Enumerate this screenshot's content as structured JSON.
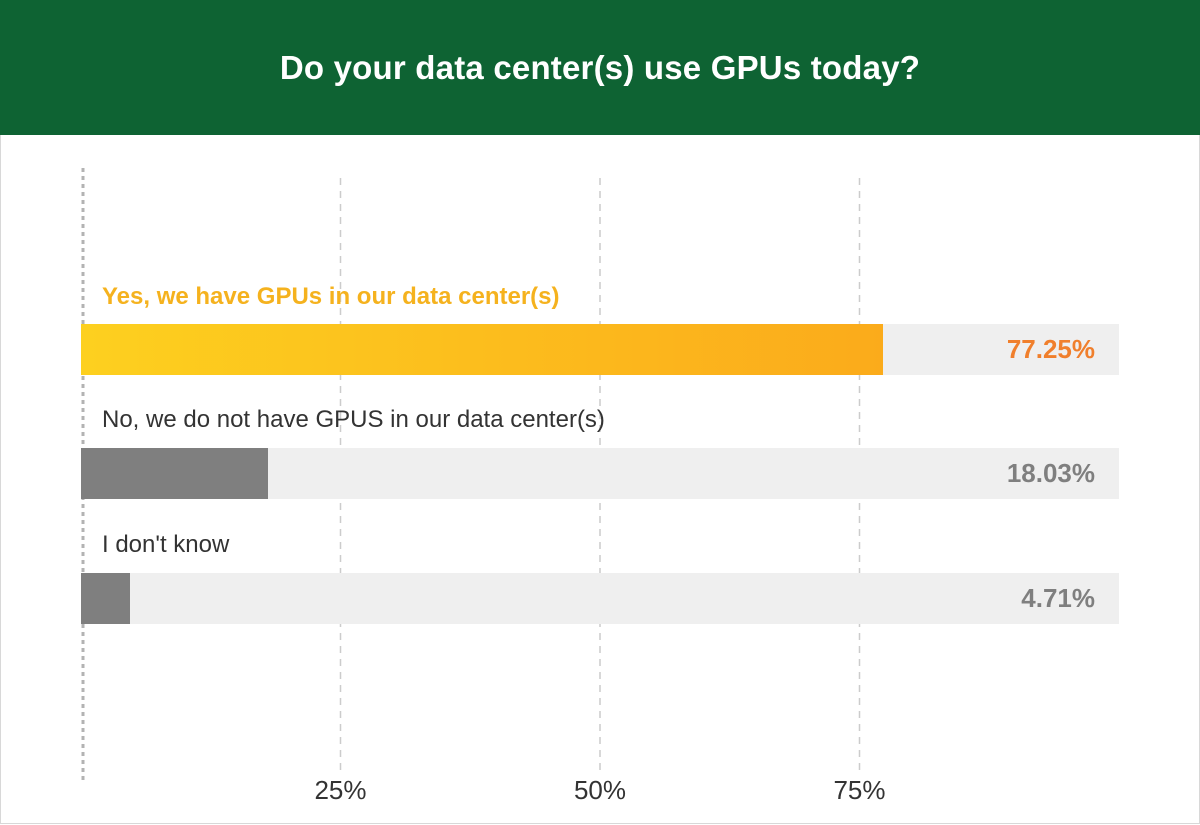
{
  "chart_data": {
    "type": "bar",
    "orientation": "horizontal",
    "title": "Do your data center(s) use GPUs today?",
    "categories": [
      "Yes, we have GPUs in our data center(s)",
      "No, we do not have GPUS in our data center(s)",
      "I don't know"
    ],
    "values": [
      77.25,
      18.03,
      4.71
    ],
    "value_labels": [
      "77.25%",
      "18.03%",
      "4.71%"
    ],
    "xlim": [
      0,
      100
    ],
    "x_ticks": [
      25,
      50,
      75
    ],
    "x_tick_labels": [
      "25%",
      "50%",
      "75%"
    ],
    "grid": true,
    "legend": "none"
  },
  "colors": {
    "header_bg": "#0e6333",
    "highlight_label": "#f5b21e",
    "highlight_bar_start": "#fdd01f",
    "highlight_bar_end": "#fbab1b",
    "highlight_value": "#f07f2c",
    "muted_bar": "#7f7f7f",
    "muted_text": "#333333",
    "muted_value": "#7f7f7f",
    "track": "#efefef"
  }
}
